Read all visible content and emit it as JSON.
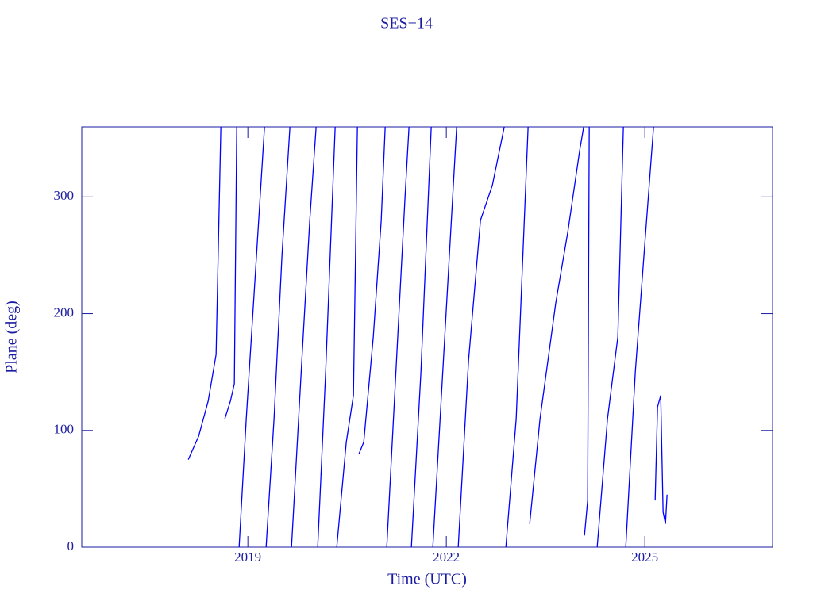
{
  "chart_data": {
    "type": "line",
    "title": "SES−14",
    "x_label": "Time (UTC)",
    "y_label": "Plane (deg)",
    "color": "#0000ff",
    "xlim": [
      2016.49,
      2026.93
    ],
    "xticks": [
      2019,
      2022,
      2025
    ],
    "ylim": [
      0,
      360
    ],
    "yticks": [
      0,
      100,
      200,
      300
    ],
    "x": [
      2018.1,
      2018.256,
      2018.4,
      2018.52,
      2018.592,
      null,
      2018.652,
      2018.736,
      2018.796,
      2018.832,
      null,
      2018.868,
      2018.976,
      2019.12,
      2019.252,
      null,
      2019.276,
      2019.396,
      2019.516,
      2019.636,
      null,
      2019.66,
      2019.816,
      2019.936,
      2020.032,
      null,
      2020.056,
      2020.176,
      2020.32,
      null,
      2020.344,
      2020.488,
      2020.596,
      2020.656,
      null,
      2020.68,
      2020.752,
      2020.896,
      2021.016,
      2021.076,
      null,
      2021.1,
      2021.256,
      2021.376,
      2021.436,
      null,
      2021.472,
      2021.616,
      2021.772,
      null,
      2021.796,
      2021.976,
      2022.156,
      null,
      2022.18,
      2022.336,
      2022.516,
      2022.636,
      2022.696,
      2022.876,
      null,
      2022.9,
      2023.056,
      2023.236,
      null,
      2023.26,
      2023.416,
      2023.536,
      2023.656,
      2023.836,
      2024.016,
      2024.076,
      null,
      2024.088,
      2024.136,
      2024.16,
      null,
      2024.28,
      2024.436,
      2024.592,
      2024.676,
      null,
      2024.712,
      2024.856,
      2025.0,
      2025.132,
      null,
      2025.156,
      2025.192,
      2025.24,
      2025.276,
      2025.312,
      2025.336
    ],
    "values": [
      75,
      95,
      125,
      165,
      360,
      null,
      110,
      125,
      140,
      360,
      null,
      0,
      110,
      240,
      360,
      null,
      0,
      110,
      250,
      360,
      null,
      0,
      160,
      280,
      360,
      null,
      0,
      150,
      360,
      null,
      0,
      90,
      130,
      360,
      null,
      80,
      90,
      180,
      280,
      360,
      null,
      0,
      170,
      300,
      360,
      null,
      0,
      150,
      360,
      null,
      0,
      180,
      360,
      null,
      0,
      160,
      280,
      300,
      310,
      360,
      null,
      0,
      110,
      360,
      null,
      20,
      110,
      160,
      210,
      270,
      340,
      360,
      null,
      10,
      40,
      360,
      null,
      0,
      110,
      180,
      360,
      null,
      0,
      150,
      260,
      360,
      null,
      40,
      120,
      130,
      30,
      20,
      45
    ]
  }
}
